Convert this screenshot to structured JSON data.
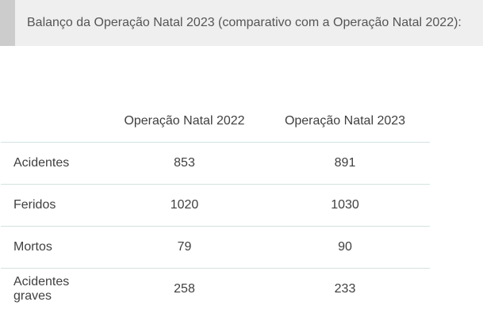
{
  "callout": {
    "text": "Balanço da Operação Natal 2023 (comparativo com a Operação Natal 2022):"
  },
  "table": {
    "headers": [
      "",
      "Operação Natal 2022",
      "Operação Natal 2023"
    ],
    "rows": [
      {
        "label": "Acidentes",
        "v2022": "853",
        "v2023": "891"
      },
      {
        "label": "Feridos",
        "v2022": "1020",
        "v2023": "1030"
      },
      {
        "label": "Mortos",
        "v2022": "79",
        "v2023": "90"
      },
      {
        "label": "Acidentes graves",
        "v2022": "258",
        "v2023": "233"
      }
    ]
  },
  "colors": {
    "callout_background": "#efefef",
    "callout_bar": "#cccccc",
    "row_divider": "#d4e3e1",
    "text": "#3f3f3f"
  }
}
